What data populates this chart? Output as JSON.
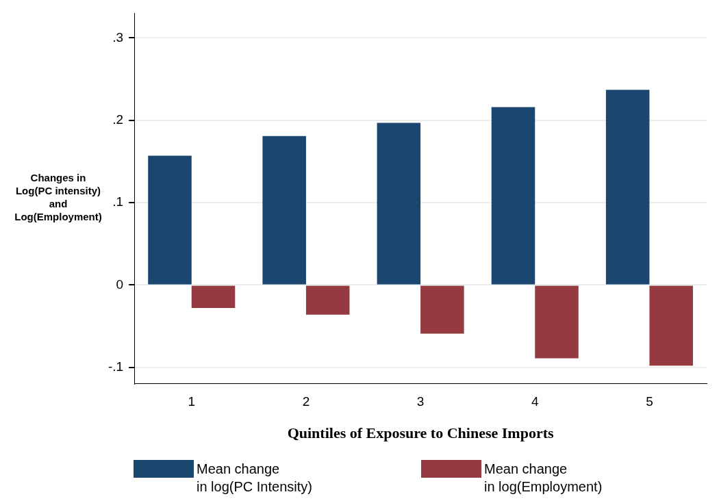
{
  "chart_data": {
    "type": "bar",
    "xlabel": "Quintiles of Exposure to Chinese Imports",
    "ylabel": "Changes in\nLog(PC intensity)\nand\nLog(Employment)",
    "categories": [
      "1",
      "2",
      "3",
      "4",
      "5"
    ],
    "series": [
      {
        "name": "Mean change\nin log(PC Intensity)",
        "color": "#1a4670",
        "values": [
          0.157,
          0.181,
          0.197,
          0.216,
          0.237
        ]
      },
      {
        "name": "Mean change\nin log(Employment)",
        "color": "#943a40",
        "values": [
          -0.028,
          -0.036,
          -0.059,
          -0.089,
          -0.098
        ]
      }
    ],
    "ylim": [
      -0.12,
      0.33
    ],
    "yticks": [
      {
        "value": -0.1,
        "label": "-.1"
      },
      0,
      {
        "value": 0.1,
        "label": ".1"
      },
      {
        "value": 0.2,
        "label": ".2"
      },
      {
        "value": 0.3,
        "label": ".3"
      }
    ],
    "grid": "y",
    "legend": "bottom"
  }
}
